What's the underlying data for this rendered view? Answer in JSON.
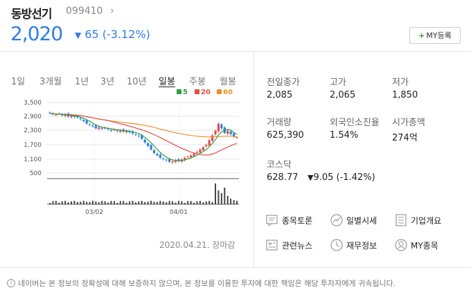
{
  "header": {
    "name": "동방선기",
    "code": "099410",
    "price": "2,020",
    "change_arrow": "▼",
    "change_text": "65 (-3.12%)",
    "my_button": "MY등록"
  },
  "periods": [
    "1일",
    "3개월",
    "1년",
    "3년",
    "10년",
    "일봉",
    "주봉",
    "월봉"
  ],
  "active_period": "일봉",
  "legend": [
    {
      "label": "5",
      "color": "#2ea043"
    },
    {
      "label": "20",
      "color": "#e84a4a"
    },
    {
      "label": "60",
      "color": "#f0902a"
    }
  ],
  "chart_data": {
    "type": "candlestick",
    "y_ticks": [
      "3,500",
      "2,900",
      "2,300",
      "1,700",
      "1,100",
      "500"
    ],
    "x_ticks": [
      "03/02",
      "04/01"
    ],
    "up_color": "#e84a4a",
    "down_color": "#2e7ee5"
  },
  "chart_footer": "2020.04.21. 장마감",
  "info": {
    "prev_close_label": "전일종가",
    "prev_close": "2,085",
    "high_label": "고가",
    "high": "2,065",
    "low_label": "저가",
    "low": "1,850",
    "volume_label": "거래량",
    "volume": "625,390",
    "foreign_label": "외국인소진율",
    "foreign": "1.54%",
    "mcap_label": "시가총액",
    "mcap": "274억",
    "index_label": "코스닥",
    "index_value": "628.77",
    "index_arrow": "▼",
    "index_change": "9.05 (-1.42%)"
  },
  "links": {
    "discussion": "종목토론",
    "daily": "일별시세",
    "company": "기업개요",
    "news": "관련뉴스",
    "finance": "재무정보",
    "my": "MY종목"
  },
  "footer": "네이버는 본 정보의 정확성에 대해 보증하지 않으며, 본 정보를 이용한 투자에 대한 책임은 해당 투자자에게 귀속됩니다."
}
